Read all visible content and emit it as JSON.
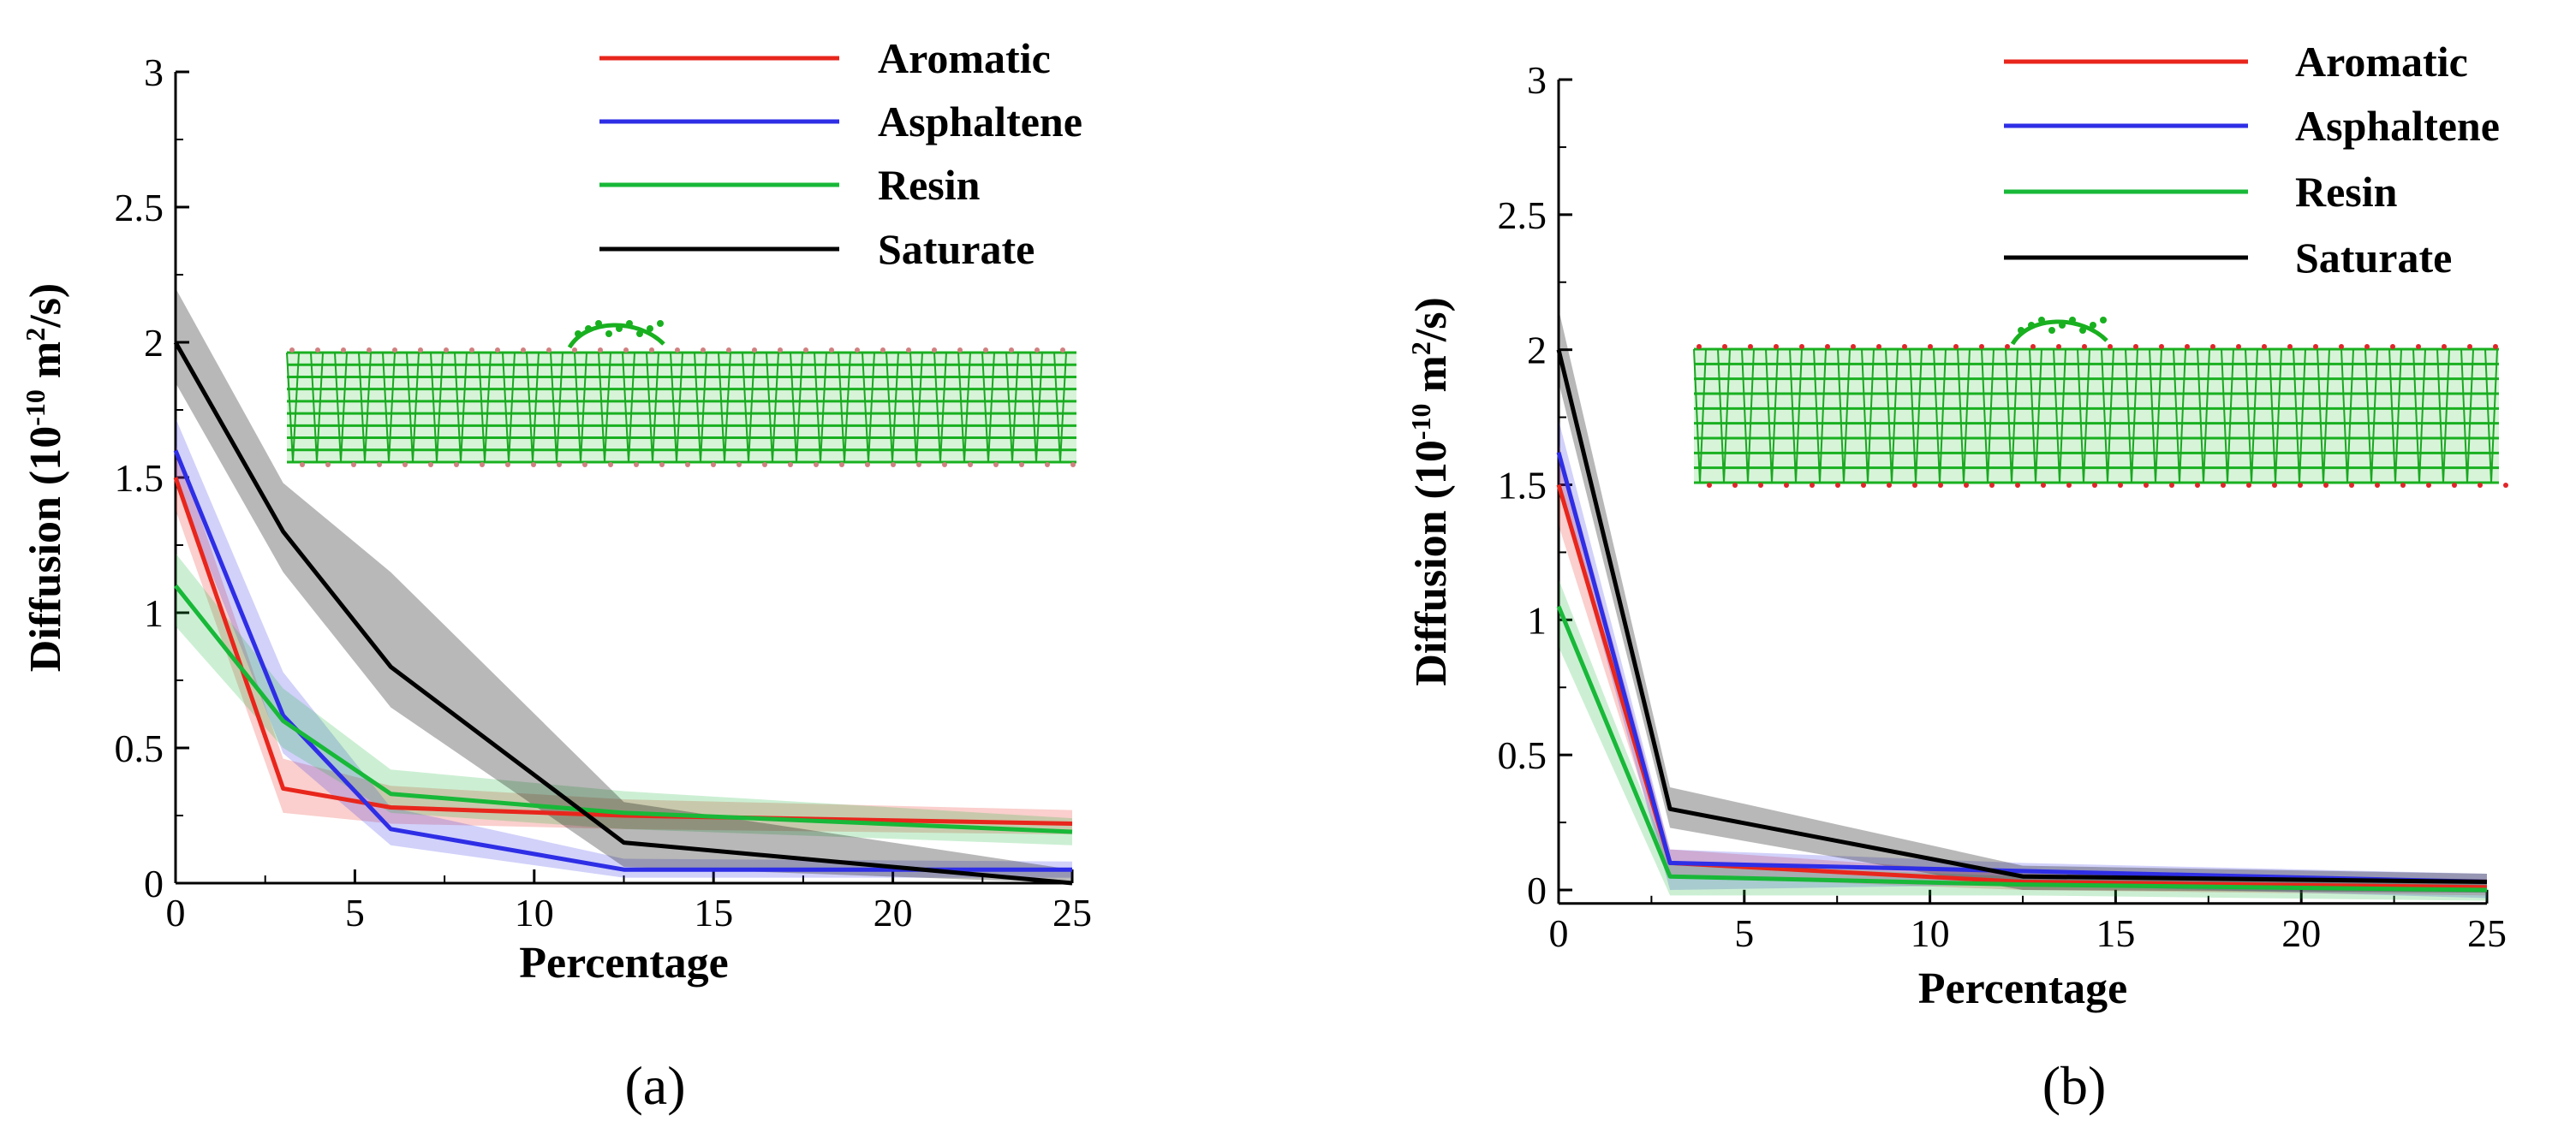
{
  "chart_data": [
    {
      "type": "line",
      "panel": "a",
      "caption": "(a)",
      "xlabel": "Percentage",
      "ylabel": "Diffusion (10",
      "ylabel_exp": "-10",
      "ylabel_mid": " m",
      "ylabel_exp2": "2",
      "ylabel_end": "/s)",
      "xlim": [
        0,
        25
      ],
      "ylim": [
        0,
        3
      ],
      "xticks": [
        0,
        5,
        10,
        15,
        20,
        25
      ],
      "yticks": [
        0,
        0.5,
        1,
        1.5,
        2,
        2.5,
        3
      ],
      "legend_position": "top-right",
      "inset": "nanotube-with-adsorbed-molecule",
      "series": [
        {
          "name": "Aromatic",
          "color": "#e8261c",
          "x": [
            0,
            3,
            6,
            12.5,
            25
          ],
          "values": [
            1.5,
            0.35,
            0.28,
            0.25,
            0.22
          ],
          "lower": [
            1.38,
            0.26,
            0.22,
            0.2,
            0.18
          ],
          "upper": [
            1.62,
            0.46,
            0.36,
            0.31,
            0.27
          ]
        },
        {
          "name": "Asphaltene",
          "color": "#2e2ee6",
          "x": [
            0,
            3,
            6,
            12.5,
            25
          ],
          "values": [
            1.6,
            0.62,
            0.2,
            0.05,
            0.05
          ],
          "lower": [
            1.48,
            0.48,
            0.14,
            0.02,
            0.02
          ],
          "upper": [
            1.72,
            0.78,
            0.28,
            0.09,
            0.08
          ]
        },
        {
          "name": "Resin",
          "color": "#18b838",
          "x": [
            0,
            3,
            6,
            12.5,
            25
          ],
          "values": [
            1.1,
            0.6,
            0.33,
            0.26,
            0.19
          ],
          "lower": [
            0.95,
            0.5,
            0.26,
            0.2,
            0.14
          ],
          "upper": [
            1.22,
            0.72,
            0.42,
            0.34,
            0.24
          ]
        },
        {
          "name": "Saturate",
          "color": "#000000",
          "x": [
            0,
            3,
            6,
            12.5,
            25
          ],
          "values": [
            2.0,
            1.3,
            0.8,
            0.15,
            0.0
          ],
          "lower": [
            1.85,
            1.15,
            0.65,
            0.06,
            0.0
          ],
          "upper": [
            2.2,
            1.48,
            1.15,
            0.3,
            0.05
          ]
        }
      ]
    },
    {
      "type": "line",
      "panel": "b",
      "caption": "(b)",
      "xlabel": "Percentage",
      "ylabel": "Diffusion (10",
      "ylabel_exp": "-10",
      "ylabel_mid": " m",
      "ylabel_exp2": "2",
      "ylabel_end": "/s)",
      "xlim": [
        0,
        25
      ],
      "ylim": [
        -0.05,
        3
      ],
      "xticks": [
        0,
        5,
        10,
        15,
        20,
        25
      ],
      "yticks": [
        0,
        0.5,
        1,
        1.5,
        2,
        2.5,
        3
      ],
      "legend_position": "top-right",
      "inset": "oxidized-nanotube-with-adsorbed-molecule",
      "series": [
        {
          "name": "Aromatic",
          "color": "#e8261c",
          "x": [
            0,
            3,
            12.5,
            25
          ],
          "values": [
            1.5,
            0.1,
            0.03,
            0.01
          ],
          "lower": [
            1.35,
            0.05,
            0.0,
            -0.02
          ],
          "upper": [
            1.65,
            0.15,
            0.06,
            0.04
          ]
        },
        {
          "name": "Asphaltene",
          "color": "#2e2ee6",
          "x": [
            0,
            3,
            12.5,
            25
          ],
          "values": [
            1.62,
            0.1,
            0.07,
            0.03
          ],
          "lower": [
            1.5,
            0.0,
            0.02,
            -0.03
          ],
          "upper": [
            1.74,
            0.15,
            0.1,
            0.06
          ]
        },
        {
          "name": "Resin",
          "color": "#18b838",
          "x": [
            0,
            3,
            12.5,
            25
          ],
          "values": [
            1.05,
            0.05,
            0.02,
            0.0
          ],
          "lower": [
            0.9,
            -0.02,
            -0.02,
            -0.04
          ],
          "upper": [
            1.15,
            0.1,
            0.05,
            0.03
          ]
        },
        {
          "name": "Saturate",
          "color": "#000000",
          "x": [
            0,
            3,
            12.5,
            25
          ],
          "values": [
            2.0,
            0.3,
            0.05,
            0.03
          ],
          "lower": [
            1.88,
            0.23,
            0.0,
            -0.01
          ],
          "upper": [
            2.15,
            0.38,
            0.09,
            0.06
          ]
        }
      ]
    }
  ]
}
